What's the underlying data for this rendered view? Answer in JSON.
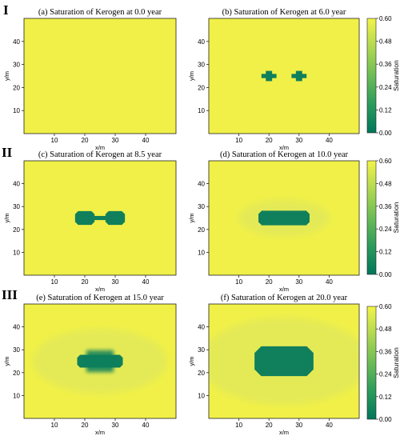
{
  "row_labels": [
    "I",
    "II",
    "III"
  ],
  "chart_data": [
    {
      "type": "heatmap",
      "title": "(a) Saturation of  Kerogen at 0.0 year",
      "xlabel": "x/m",
      "ylabel": "y/m",
      "xlim": [
        0,
        50
      ],
      "ylim": [
        0,
        50
      ],
      "xticks": [
        10,
        20,
        30,
        40
      ],
      "yticks": [
        10,
        20,
        30,
        40
      ],
      "time_years": 0.0,
      "background_saturation": 0.55,
      "depleted_saturation": 0.0,
      "depleted_regions": [],
      "halo": null,
      "colorbar": null
    },
    {
      "type": "heatmap",
      "title": "(b) Saturation of  Kerogen at 6.0 year",
      "xlabel": "x/m",
      "ylabel": "y/m",
      "xlim": [
        0,
        50
      ],
      "ylim": [
        0,
        50
      ],
      "xticks": [
        10,
        20,
        30,
        40
      ],
      "yticks": [
        10,
        20,
        30,
        40
      ],
      "time_years": 6.0,
      "background_saturation": 0.55,
      "depleted_saturation": 0.0,
      "depleted_regions": [
        {
          "shape": "cross",
          "center": [
            20,
            25
          ],
          "half_width": 2.5,
          "half_height": 2.2
        },
        {
          "shape": "cross",
          "center": [
            30,
            25
          ],
          "half_width": 2.5,
          "half_height": 2.2
        }
      ],
      "halo": null,
      "colorbar": {
        "label": "Saturation",
        "min": 0.0,
        "max": 0.6,
        "ticks": [
          "0.00",
          "0.12",
          "0.24",
          "0.36",
          "0.48",
          "0.60"
        ]
      }
    },
    {
      "type": "heatmap",
      "title": "(c) Saturation of  Kerogen at 8.5 year",
      "xlabel": "x/m",
      "ylabel": "y/m",
      "xlim": [
        0,
        50
      ],
      "ylim": [
        0,
        50
      ],
      "xticks": [
        10,
        20,
        30,
        40
      ],
      "yticks": [
        10,
        20,
        30,
        40
      ],
      "time_years": 8.5,
      "background_saturation": 0.55,
      "depleted_saturation": 0.0,
      "depleted_regions": [
        {
          "shape": "octagon",
          "center": [
            20,
            25
          ],
          "half_width": 3.2,
          "half_height": 3.0
        },
        {
          "shape": "octagon",
          "center": [
            30,
            25
          ],
          "half_width": 3.2,
          "half_height": 3.0
        },
        {
          "shape": "rect",
          "center": [
            25,
            25
          ],
          "half_width": 2.5,
          "half_height": 0.9
        }
      ],
      "halo": null,
      "colorbar": null
    },
    {
      "type": "heatmap",
      "title": "(d) Saturation of  Kerogen  at 10.0 year",
      "xlabel": "x/m",
      "ylabel": "y/m",
      "xlim": [
        0,
        50
      ],
      "ylim": [
        0,
        50
      ],
      "xticks": [
        10,
        20,
        30,
        40
      ],
      "yticks": [
        10,
        20,
        30,
        40
      ],
      "time_years": 10.0,
      "background_saturation": 0.55,
      "depleted_saturation": 0.0,
      "depleted_regions": [
        {
          "shape": "octagon",
          "center": [
            25,
            25
          ],
          "half_width": 8.5,
          "half_height": 3.2
        }
      ],
      "halo": {
        "center": [
          25,
          25
        ],
        "rx": 15,
        "ry": 8
      },
      "colorbar": {
        "label": "Saturation",
        "min": 0.0,
        "max": 0.6,
        "ticks": [
          "0.00",
          "0.12",
          "0.24",
          "0.36",
          "0.48",
          "0.60"
        ]
      }
    },
    {
      "type": "heatmap",
      "title": "(e) Saturation of  Kerogen at 15.0 year",
      "xlabel": "x/m",
      "ylabel": "y/m",
      "xlim": [
        0,
        50
      ],
      "ylim": [
        0,
        50
      ],
      "xticks": [
        10,
        20,
        30,
        40
      ],
      "yticks": [
        10,
        20,
        30,
        40
      ],
      "time_years": 15.0,
      "background_saturation": 0.55,
      "depleted_saturation": 0.0,
      "depleted_regions": [
        {
          "shape": "octagon",
          "center": [
            25,
            25
          ],
          "half_width": 7.5,
          "half_height": 2.8
        },
        {
          "shape": "rect",
          "center": [
            25,
            25
          ],
          "half_width": 4.5,
          "half_height": 4.8,
          "soft": true
        }
      ],
      "halo": {
        "center": [
          25,
          25
        ],
        "rx": 22,
        "ry": 14
      },
      "colorbar": null
    },
    {
      "type": "heatmap",
      "title": "(f) Saturation of  Kerogen at 20.0 year",
      "xlabel": "x/m",
      "ylabel": "y/m",
      "xlim": [
        0,
        50
      ],
      "ylim": [
        0,
        50
      ],
      "xticks": [
        10,
        20,
        30,
        40
      ],
      "yticks": [
        10,
        20,
        30,
        40
      ],
      "time_years": 20.0,
      "background_saturation": 0.55,
      "depleted_saturation": 0.0,
      "depleted_regions": [
        {
          "shape": "octagon",
          "center": [
            25,
            25
          ],
          "half_width": 9.8,
          "half_height": 6.5
        }
      ],
      "halo": {
        "center": [
          25,
          25
        ],
        "rx": 28,
        "ry": 19
      },
      "colorbar": {
        "label": "Saturation",
        "min": 0.0,
        "max": 0.6,
        "ticks": [
          "0.00",
          "0.12",
          "0.24",
          "0.36",
          "0.48",
          "0.60"
        ]
      }
    }
  ],
  "colors": {
    "background": "#f0f048",
    "halo": "#e4ea56",
    "depleted": "#107f5c",
    "colormap": [
      "#00775a",
      "#2c9b5c",
      "#6cbc57",
      "#b0d852",
      "#f3f448"
    ]
  }
}
